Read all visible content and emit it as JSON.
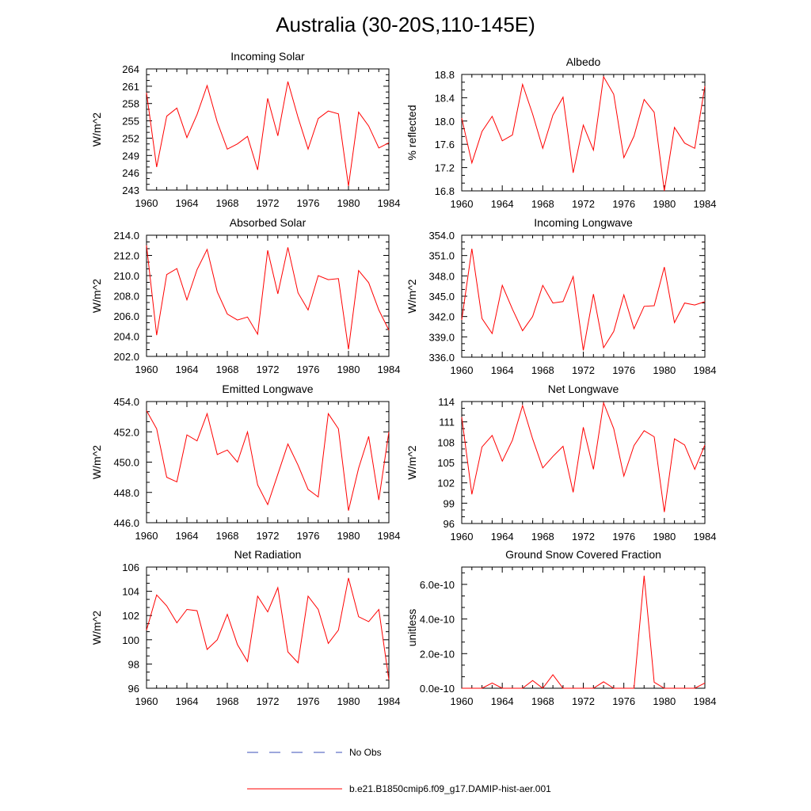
{
  "title": "Australia (30-20S,110-145E)",
  "colors": {
    "model": "#ff0000",
    "obs": "#3b4fb8"
  },
  "legend": {
    "items": [
      {
        "label": "No Obs",
        "style": "dashed",
        "color": "#3b4fb8"
      },
      {
        "label": "b.e21.B1850cmip6.f09_g17.DAMIP-hist-aer.001",
        "style": "solid",
        "color": "#ff0000"
      }
    ]
  },
  "chart_data": [
    {
      "type": "line",
      "title": "Incoming Solar",
      "ylabel": "W/m^2",
      "xlim": [
        1960,
        1984
      ],
      "ylim": [
        243,
        264
      ],
      "xticks": [
        "1960",
        "1964",
        "1968",
        "1972",
        "1976",
        "1980",
        "1984"
      ],
      "yticks": [
        "243",
        "246",
        "249",
        "252",
        "255",
        "258",
        "261",
        "264"
      ],
      "x": [
        1960,
        1961,
        1962,
        1963,
        1964,
        1965,
        1966,
        1967,
        1968,
        1969,
        1970,
        1971,
        1972,
        1973,
        1974,
        1975,
        1976,
        1977,
        1978,
        1979,
        1980,
        1981,
        1982,
        1983,
        1984
      ],
      "series": [
        {
          "name": "b.e21.B1850cmip6.f09_g17.DAMIP-hist-aer.001",
          "values": [
            259.9,
            247.0,
            255.8,
            257.2,
            252.1,
            256.1,
            261.1,
            254.8,
            250.1,
            251.0,
            252.3,
            246.5,
            258.9,
            252.4,
            261.8,
            255.6,
            250.1,
            255.4,
            256.7,
            256.2,
            243.7,
            256.5,
            254.1,
            250.3,
            251.2
          ]
        }
      ]
    },
    {
      "type": "line",
      "title": "Albedo",
      "ylabel": "% reflected",
      "xlim": [
        1960,
        1984
      ],
      "ylim": [
        16.8,
        18.8
      ],
      "xticks": [
        "1960",
        "1964",
        "1968",
        "1972",
        "1976",
        "1980",
        "1984"
      ],
      "yticks": [
        "16.8",
        "17.2",
        "17.6",
        "18.0",
        "18.4",
        "18.8"
      ],
      "x": [
        1960,
        1961,
        1962,
        1963,
        1964,
        1965,
        1966,
        1967,
        1968,
        1969,
        1970,
        1971,
        1972,
        1973,
        1974,
        1975,
        1976,
        1977,
        1978,
        1979,
        1980,
        1981,
        1982,
        1983,
        1984
      ],
      "series": [
        {
          "name": "b.e21.B1850cmip6.f09_g17.DAMIP-hist-aer.001",
          "values": [
            18.05,
            17.28,
            17.82,
            18.08,
            17.66,
            17.76,
            18.63,
            18.12,
            17.53,
            18.1,
            18.41,
            17.11,
            17.93,
            17.5,
            18.76,
            18.46,
            17.37,
            17.74,
            18.37,
            18.15,
            16.8,
            17.89,
            17.62,
            17.53,
            18.6
          ]
        }
      ]
    },
    {
      "type": "line",
      "title": "Absorbed Solar",
      "ylabel": "W/m^2",
      "xlim": [
        1960,
        1984
      ],
      "ylim": [
        202.0,
        214.0
      ],
      "xticks": [
        "1960",
        "1964",
        "1968",
        "1972",
        "1976",
        "1980",
        "1984"
      ],
      "yticks": [
        "202.0",
        "204.0",
        "206.0",
        "208.0",
        "210.0",
        "212.0",
        "214.0"
      ],
      "x": [
        1960,
        1961,
        1962,
        1963,
        1964,
        1965,
        1966,
        1967,
        1968,
        1969,
        1970,
        1971,
        1972,
        1973,
        1974,
        1975,
        1976,
        1977,
        1978,
        1979,
        1980,
        1981,
        1982,
        1983,
        1984
      ],
      "series": [
        {
          "name": "b.e21.B1850cmip6.f09_g17.DAMIP-hist-aer.001",
          "values": [
            213.0,
            204.1,
            210.1,
            210.7,
            207.6,
            210.6,
            212.6,
            208.4,
            206.2,
            205.6,
            205.9,
            204.2,
            212.5,
            208.2,
            212.8,
            208.3,
            206.6,
            210.0,
            209.6,
            209.7,
            202.7,
            210.5,
            209.3,
            206.6,
            204.6
          ]
        }
      ]
    },
    {
      "type": "line",
      "title": "Incoming Longwave",
      "ylabel": "W/m^2",
      "xlim": [
        1960,
        1984
      ],
      "ylim": [
        336.0,
        354.0
      ],
      "xticks": [
        "1960",
        "1964",
        "1968",
        "1972",
        "1976",
        "1980",
        "1984"
      ],
      "yticks": [
        "336.0",
        "339.0",
        "342.0",
        "345.0",
        "348.0",
        "351.0",
        "354.0"
      ],
      "x": [
        1960,
        1961,
        1962,
        1963,
        1964,
        1965,
        1966,
        1967,
        1968,
        1969,
        1970,
        1971,
        1972,
        1973,
        1974,
        1975,
        1976,
        1977,
        1978,
        1979,
        1980,
        1981,
        1982,
        1983,
        1984
      ],
      "series": [
        {
          "name": "b.e21.B1850cmip6.f09_g17.DAMIP-hist-aer.001",
          "values": [
            341.5,
            352.0,
            341.7,
            339.5,
            346.6,
            343.1,
            339.9,
            342.0,
            346.6,
            344.0,
            344.2,
            347.9,
            337.0,
            345.3,
            337.4,
            339.8,
            345.2,
            340.2,
            343.5,
            343.6,
            349.3,
            341.1,
            344.0,
            343.7,
            344.2
          ]
        }
      ]
    },
    {
      "type": "line",
      "title": "Emitted Longwave",
      "ylabel": "W/m^2",
      "xlim": [
        1960,
        1984
      ],
      "ylim": [
        446.0,
        454.0
      ],
      "xticks": [
        "1960",
        "1964",
        "1968",
        "1972",
        "1976",
        "1980",
        "1984"
      ],
      "yticks": [
        "446.0",
        "448.0",
        "450.0",
        "452.0",
        "454.0"
      ],
      "x": [
        1960,
        1961,
        1962,
        1963,
        1964,
        1965,
        1966,
        1967,
        1968,
        1969,
        1970,
        1971,
        1972,
        1973,
        1974,
        1975,
        1976,
        1977,
        1978,
        1979,
        1980,
        1981,
        1982,
        1983,
        1984
      ],
      "series": [
        {
          "name": "b.e21.B1850cmip6.f09_g17.DAMIP-hist-aer.001",
          "values": [
            453.4,
            452.2,
            449.0,
            448.7,
            451.8,
            451.4,
            453.2,
            450.5,
            450.8,
            450.0,
            452.0,
            448.5,
            447.2,
            449.2,
            451.2,
            449.8,
            448.2,
            447.7,
            453.2,
            452.2,
            446.8,
            449.6,
            451.7,
            447.5,
            452.0
          ]
        }
      ]
    },
    {
      "type": "line",
      "title": "Net Longwave",
      "ylabel": "W/m^2",
      "xlim": [
        1960,
        1984
      ],
      "ylim": [
        96,
        114
      ],
      "xticks": [
        "1960",
        "1964",
        "1968",
        "1972",
        "1976",
        "1980",
        "1984"
      ],
      "yticks": [
        "96",
        "99",
        "102",
        "105",
        "108",
        "111",
        "114"
      ],
      "x": [
        1960,
        1961,
        1962,
        1963,
        1964,
        1965,
        1966,
        1967,
        1968,
        1969,
        1970,
        1971,
        1972,
        1973,
        1974,
        1975,
        1976,
        1977,
        1978,
        1979,
        1980,
        1981,
        1982,
        1983,
        1984
      ],
      "series": [
        {
          "name": "b.e21.B1850cmip6.f09_g17.DAMIP-hist-aer.001",
          "values": [
            111.7,
            100.3,
            107.3,
            109.0,
            105.2,
            108.3,
            113.4,
            108.5,
            104.2,
            105.9,
            107.4,
            100.6,
            110.2,
            104.0,
            113.8,
            110.0,
            103.0,
            107.5,
            109.7,
            108.8,
            97.7,
            108.5,
            107.6,
            104.0,
            107.6
          ]
        }
      ]
    },
    {
      "type": "line",
      "title": "Net Radiation",
      "ylabel": "W/m^2",
      "xlim": [
        1960,
        1984
      ],
      "ylim": [
        96,
        106
      ],
      "xticks": [
        "1960",
        "1964",
        "1968",
        "1972",
        "1976",
        "1980",
        "1984"
      ],
      "yticks": [
        "96",
        "98",
        "100",
        "102",
        "104",
        "106"
      ],
      "x": [
        1960,
        1961,
        1962,
        1963,
        1964,
        1965,
        1966,
        1967,
        1968,
        1969,
        1970,
        1971,
        1972,
        1973,
        1974,
        1975,
        1976,
        1977,
        1978,
        1979,
        1980,
        1981,
        1982,
        1983,
        1984
      ],
      "series": [
        {
          "name": "b.e21.B1850cmip6.f09_g17.DAMIP-hist-aer.001",
          "values": [
            100.8,
            103.7,
            102.8,
            101.4,
            102.5,
            102.4,
            99.2,
            100.0,
            102.1,
            99.6,
            98.2,
            103.6,
            102.3,
            104.3,
            99.0,
            98.1,
            103.6,
            102.5,
            99.7,
            100.8,
            105.1,
            101.9,
            101.5,
            102.5,
            96.7
          ]
        }
      ]
    },
    {
      "type": "line",
      "title": "Ground Snow Covered Fraction",
      "ylabel": "unitless",
      "xlim": [
        1960,
        1984
      ],
      "ylim": [
        0,
        7e-10
      ],
      "xticks": [
        "1960",
        "1964",
        "1968",
        "1972",
        "1976",
        "1980",
        "1984"
      ],
      "yticks": [
        "0.0e-10",
        "2.0e-10",
        "4.0e-10",
        "6.0e-10"
      ],
      "ytick_values": [
        0,
        2e-10,
        4e-10,
        6e-10
      ],
      "x": [
        1960,
        1961,
        1962,
        1963,
        1964,
        1965,
        1966,
        1967,
        1968,
        1969,
        1970,
        1971,
        1972,
        1973,
        1974,
        1975,
        1976,
        1977,
        1978,
        1979,
        1980,
        1981,
        1982,
        1983,
        1984
      ],
      "series": [
        {
          "name": "b.e21.B1850cmip6.f09_g17.DAMIP-hist-aer.001",
          "values": [
            0,
            0,
            0,
            3e-11,
            0,
            0,
            0,
            4.5e-11,
            0,
            7.8e-11,
            0,
            0,
            0,
            0,
            3.7e-11,
            0,
            0,
            0,
            6.5e-10,
            3.5e-11,
            0,
            0,
            0,
            0,
            3e-11
          ]
        }
      ]
    }
  ]
}
